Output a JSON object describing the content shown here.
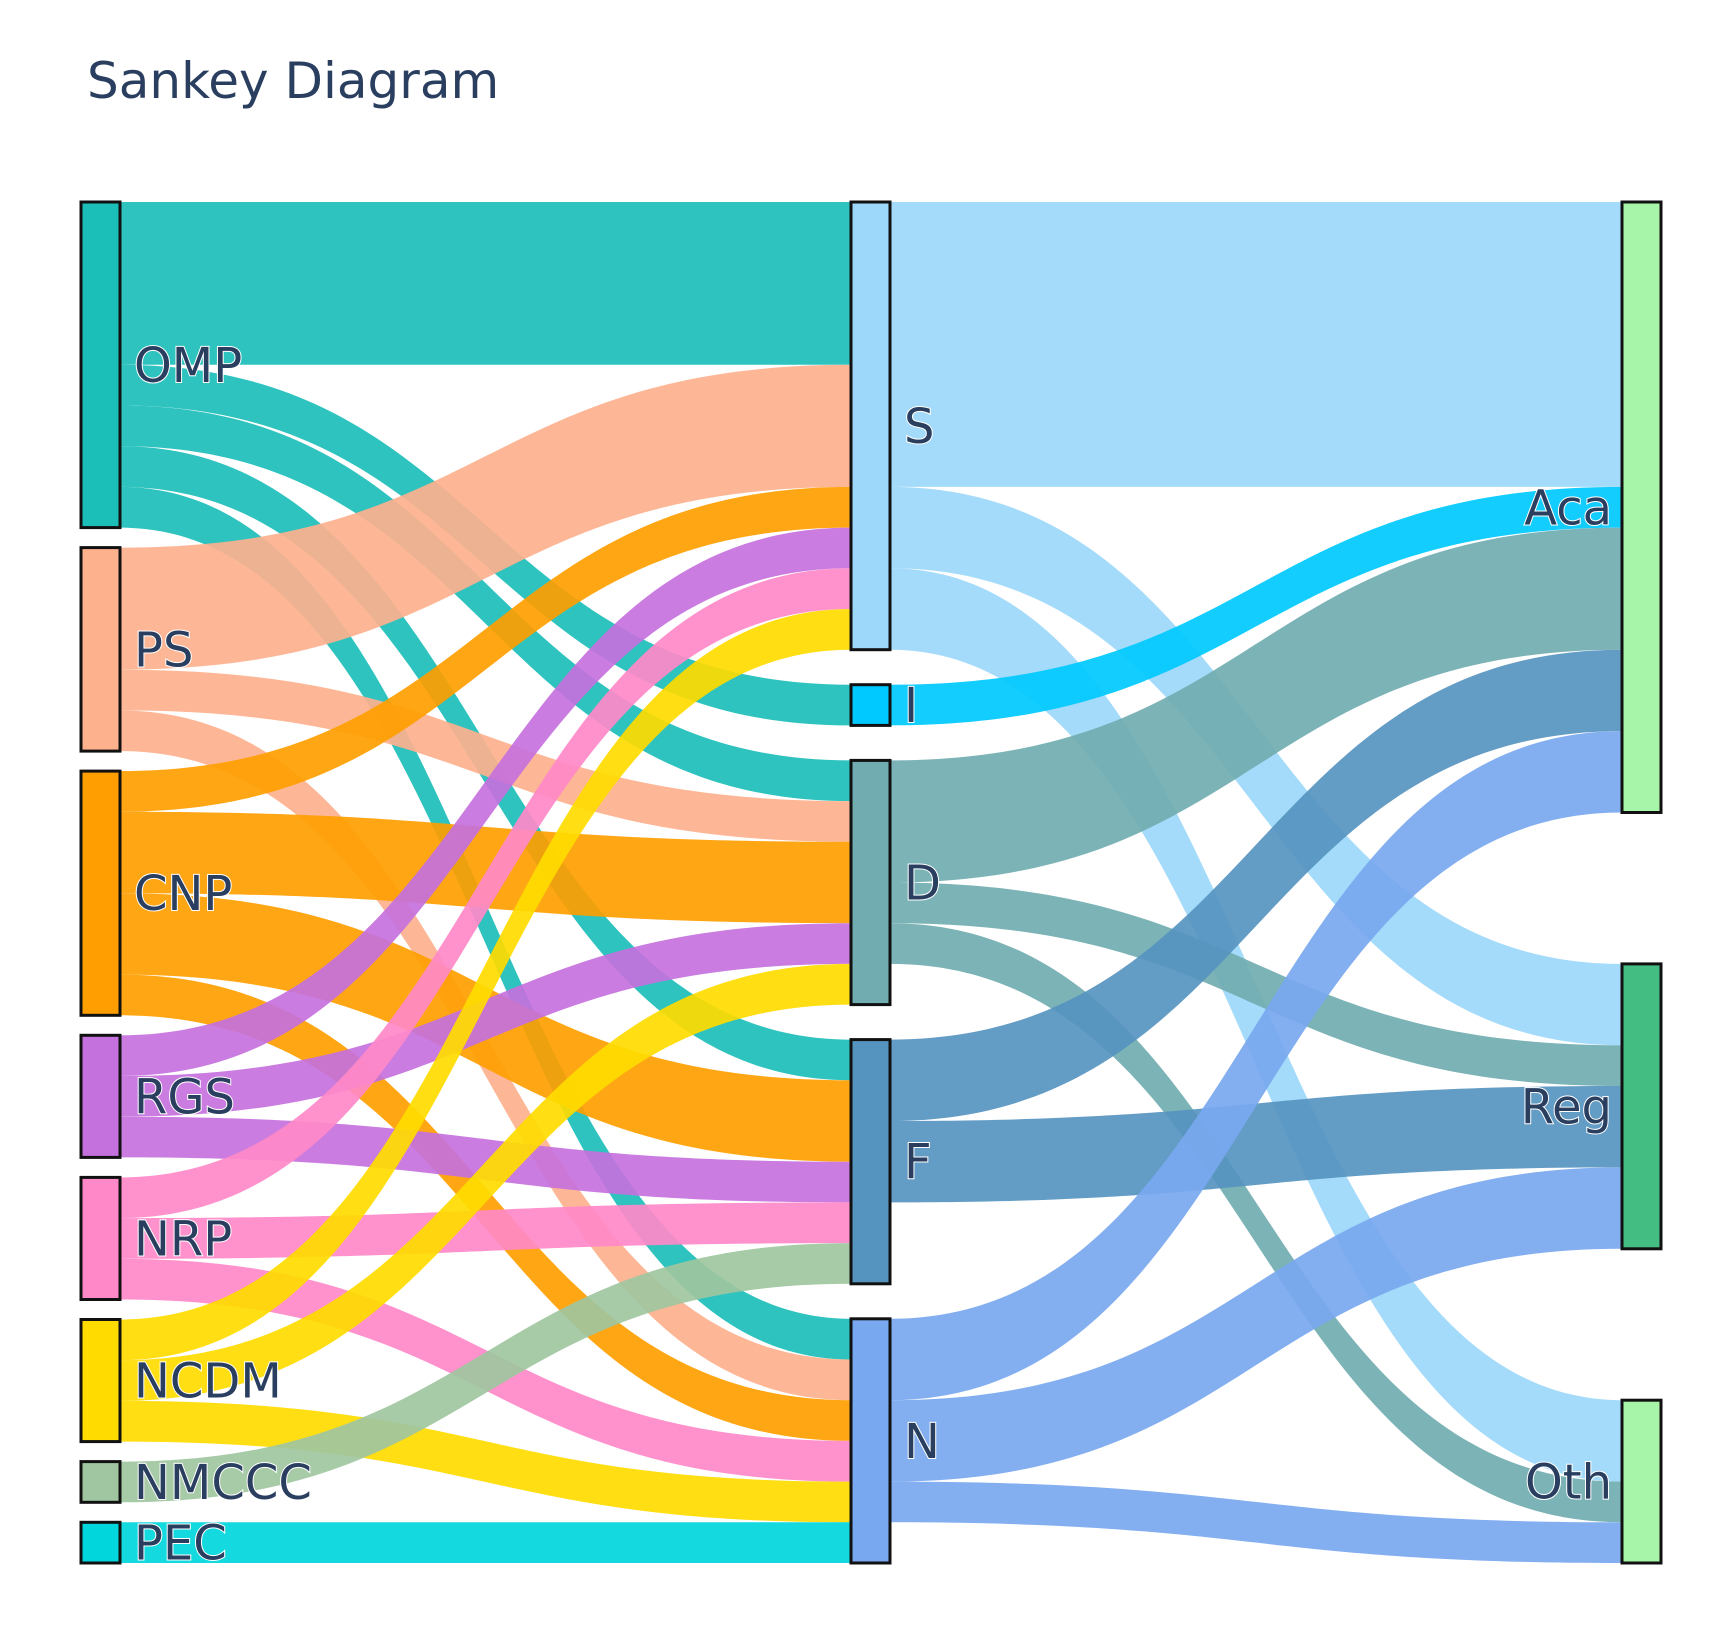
{
  "title": "Sankey Diagram",
  "nodes": [
    {
      "id": "OMP",
      "label": "OMP",
      "color": "#1cbeb8"
    },
    {
      "id": "PS",
      "label": "PS",
      "color": "#fdb18d"
    },
    {
      "id": "CNP",
      "label": "CNP",
      "color": "#ff9e00"
    },
    {
      "id": "RGS",
      "label": "RGS",
      "color": "#c571dd"
    },
    {
      "id": "NRP",
      "label": "NRP",
      "color": "#ff89c8"
    },
    {
      "id": "NCDM",
      "label": "NCDM",
      "color": "#ffdb00"
    },
    {
      "id": "NMCCC",
      "label": "NMCCC",
      "color": "#9fc6a0"
    },
    {
      "id": "PEC",
      "label": "PEC",
      "color": "#00d6dc"
    },
    {
      "id": "S",
      "label": "S",
      "color": "#9dd8fa"
    },
    {
      "id": "I",
      "label": "I",
      "color": "#00c9ff"
    },
    {
      "id": "D",
      "label": "D",
      "color": "#71adb0"
    },
    {
      "id": "F",
      "label": "F",
      "color": "#5694c0"
    },
    {
      "id": "N",
      "label": "N",
      "color": "#78a8ef"
    },
    {
      "id": "Aca",
      "label": "Aca",
      "color": "#a6f5a8"
    },
    {
      "id": "Reg",
      "label": "Reg",
      "color": "#44bd82"
    },
    {
      "id": "Oth",
      "label": "Oth",
      "color": "#a6f5a8"
    }
  ],
  "links": [
    {
      "source": "OMP",
      "target": "S",
      "value": 4
    },
    {
      "source": "OMP",
      "target": "I",
      "value": 1
    },
    {
      "source": "OMP",
      "target": "D",
      "value": 1
    },
    {
      "source": "OMP",
      "target": "F",
      "value": 1
    },
    {
      "source": "OMP",
      "target": "N",
      "value": 1
    },
    {
      "source": "PS",
      "target": "S",
      "value": 3
    },
    {
      "source": "PS",
      "target": "D",
      "value": 1
    },
    {
      "source": "PS",
      "target": "N",
      "value": 1
    },
    {
      "source": "CNP",
      "target": "S",
      "value": 1
    },
    {
      "source": "CNP",
      "target": "D",
      "value": 2
    },
    {
      "source": "CNP",
      "target": "F",
      "value": 2
    },
    {
      "source": "CNP",
      "target": "N",
      "value": 1
    },
    {
      "source": "RGS",
      "target": "S",
      "value": 1
    },
    {
      "source": "RGS",
      "target": "D",
      "value": 1
    },
    {
      "source": "RGS",
      "target": "F",
      "value": 1
    },
    {
      "source": "NRP",
      "target": "S",
      "value": 1
    },
    {
      "source": "NRP",
      "target": "F",
      "value": 1
    },
    {
      "source": "NRP",
      "target": "N",
      "value": 1
    },
    {
      "source": "NCDM",
      "target": "S",
      "value": 1
    },
    {
      "source": "NCDM",
      "target": "D",
      "value": 1
    },
    {
      "source": "NCDM",
      "target": "N",
      "value": 1
    },
    {
      "source": "NMCCC",
      "target": "F",
      "value": 1
    },
    {
      "source": "PEC",
      "target": "N",
      "value": 1
    },
    {
      "source": "S",
      "target": "Aca",
      "value": 7
    },
    {
      "source": "S",
      "target": "Reg",
      "value": 2
    },
    {
      "source": "S",
      "target": "Oth",
      "value": 2
    },
    {
      "source": "I",
      "target": "Aca",
      "value": 1
    },
    {
      "source": "D",
      "target": "Aca",
      "value": 3
    },
    {
      "source": "D",
      "target": "Reg",
      "value": 1
    },
    {
      "source": "D",
      "target": "Oth",
      "value": 1
    },
    {
      "source": "F",
      "target": "Aca",
      "value": 2
    },
    {
      "source": "F",
      "target": "Reg",
      "value": 2
    },
    {
      "source": "N",
      "target": "Aca",
      "value": 2
    },
    {
      "source": "N",
      "target": "Reg",
      "value": 2
    },
    {
      "source": "N",
      "target": "Oth",
      "value": 1
    }
  ]
}
